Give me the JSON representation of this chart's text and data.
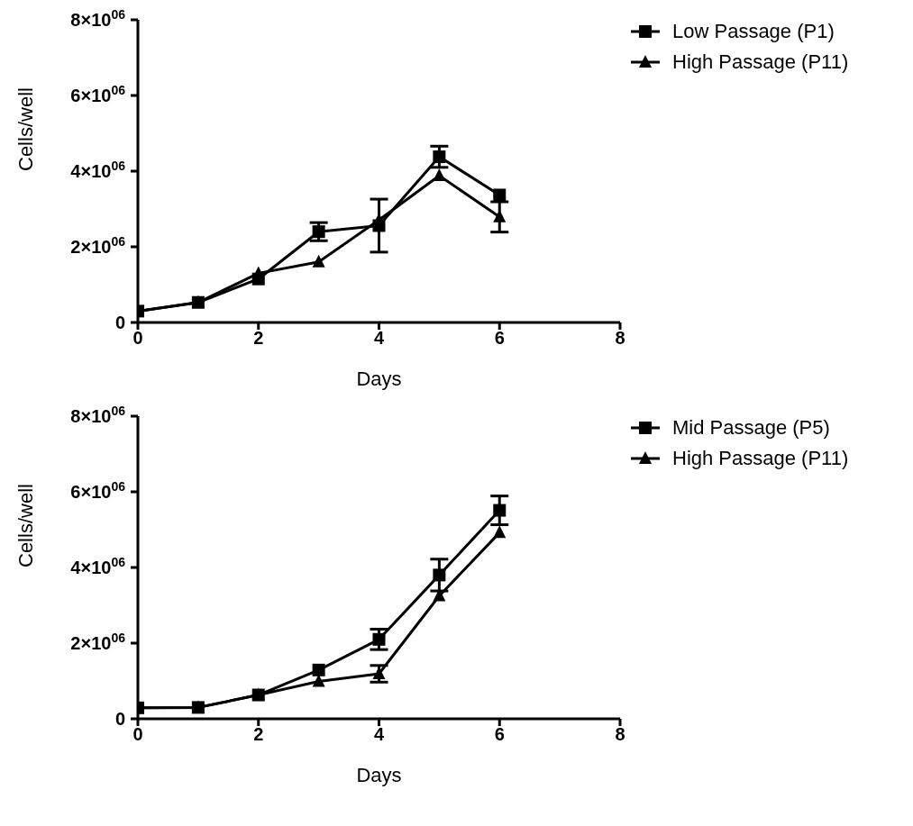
{
  "chart_data": [
    {
      "type": "line",
      "xlabel": "Days",
      "ylabel": "Cells/well",
      "x": [
        0,
        1,
        2,
        3,
        4,
        5,
        6
      ],
      "xlim": [
        0,
        8
      ],
      "xticks": [
        0,
        2,
        4,
        6,
        8
      ],
      "ylim": [
        0,
        8000000
      ],
      "yticks": [
        0,
        {
          "value": 2000000,
          "label": "2×10$^{06}$"
        },
        {
          "value": 4000000,
          "label": "4×10$^{06}$"
        },
        {
          "value": 6000000,
          "label": "6×10$^{06}$"
        },
        {
          "value": 8000000,
          "label": "8×10$^{06}$"
        }
      ],
      "grid": false,
      "legend": "top right",
      "line_style": "solid",
      "series": [
        {
          "name": "Low Passage (P1)",
          "color": "#000000",
          "marker": "square",
          "values": [
            300000,
            530000,
            1150000,
            2400000,
            2560000,
            4380000,
            3370000
          ],
          "errors": [
            null,
            null,
            null,
            240000,
            700000,
            280000,
            null
          ]
        },
        {
          "name": "High Passage (P11)",
          "color": "#000000",
          "marker": "triangle",
          "values": [
            300000,
            530000,
            1300000,
            1600000,
            2710000,
            3880000,
            2790000
          ],
          "errors": [
            null,
            null,
            null,
            null,
            null,
            null,
            400000
          ]
        }
      ]
    },
    {
      "type": "line",
      "xlabel": "Days",
      "ylabel": "Cells/well",
      "x": [
        0,
        1,
        2,
        3,
        4,
        5,
        6
      ],
      "xlim": [
        0,
        8
      ],
      "xticks": [
        0,
        2,
        4,
        6,
        8
      ],
      "ylim": [
        0,
        8000000
      ],
      "yticks": [
        0,
        {
          "value": 2000000,
          "label": "2×10$^{06}$"
        },
        {
          "value": 4000000,
          "label": "4×10$^{06}$"
        },
        {
          "value": 6000000,
          "label": "6×10$^{06}$"
        },
        {
          "value": 8000000,
          "label": "8×10$^{06}$"
        }
      ],
      "grid": false,
      "legend": "top right",
      "line_style": "solid",
      "series": [
        {
          "name": "Mid Passage (P5)",
          "color": "#000000",
          "marker": "square",
          "values": [
            290000,
            300000,
            630000,
            1290000,
            2100000,
            3800000,
            5510000
          ],
          "errors": [
            null,
            null,
            null,
            null,
            270000,
            420000,
            380000
          ]
        },
        {
          "name": "High Passage (P11)",
          "color": "#000000",
          "marker": "triangle",
          "values": [
            290000,
            300000,
            630000,
            990000,
            1190000,
            3250000,
            4920000
          ],
          "errors": [
            null,
            null,
            null,
            null,
            220000,
            null,
            null
          ]
        }
      ]
    }
  ]
}
